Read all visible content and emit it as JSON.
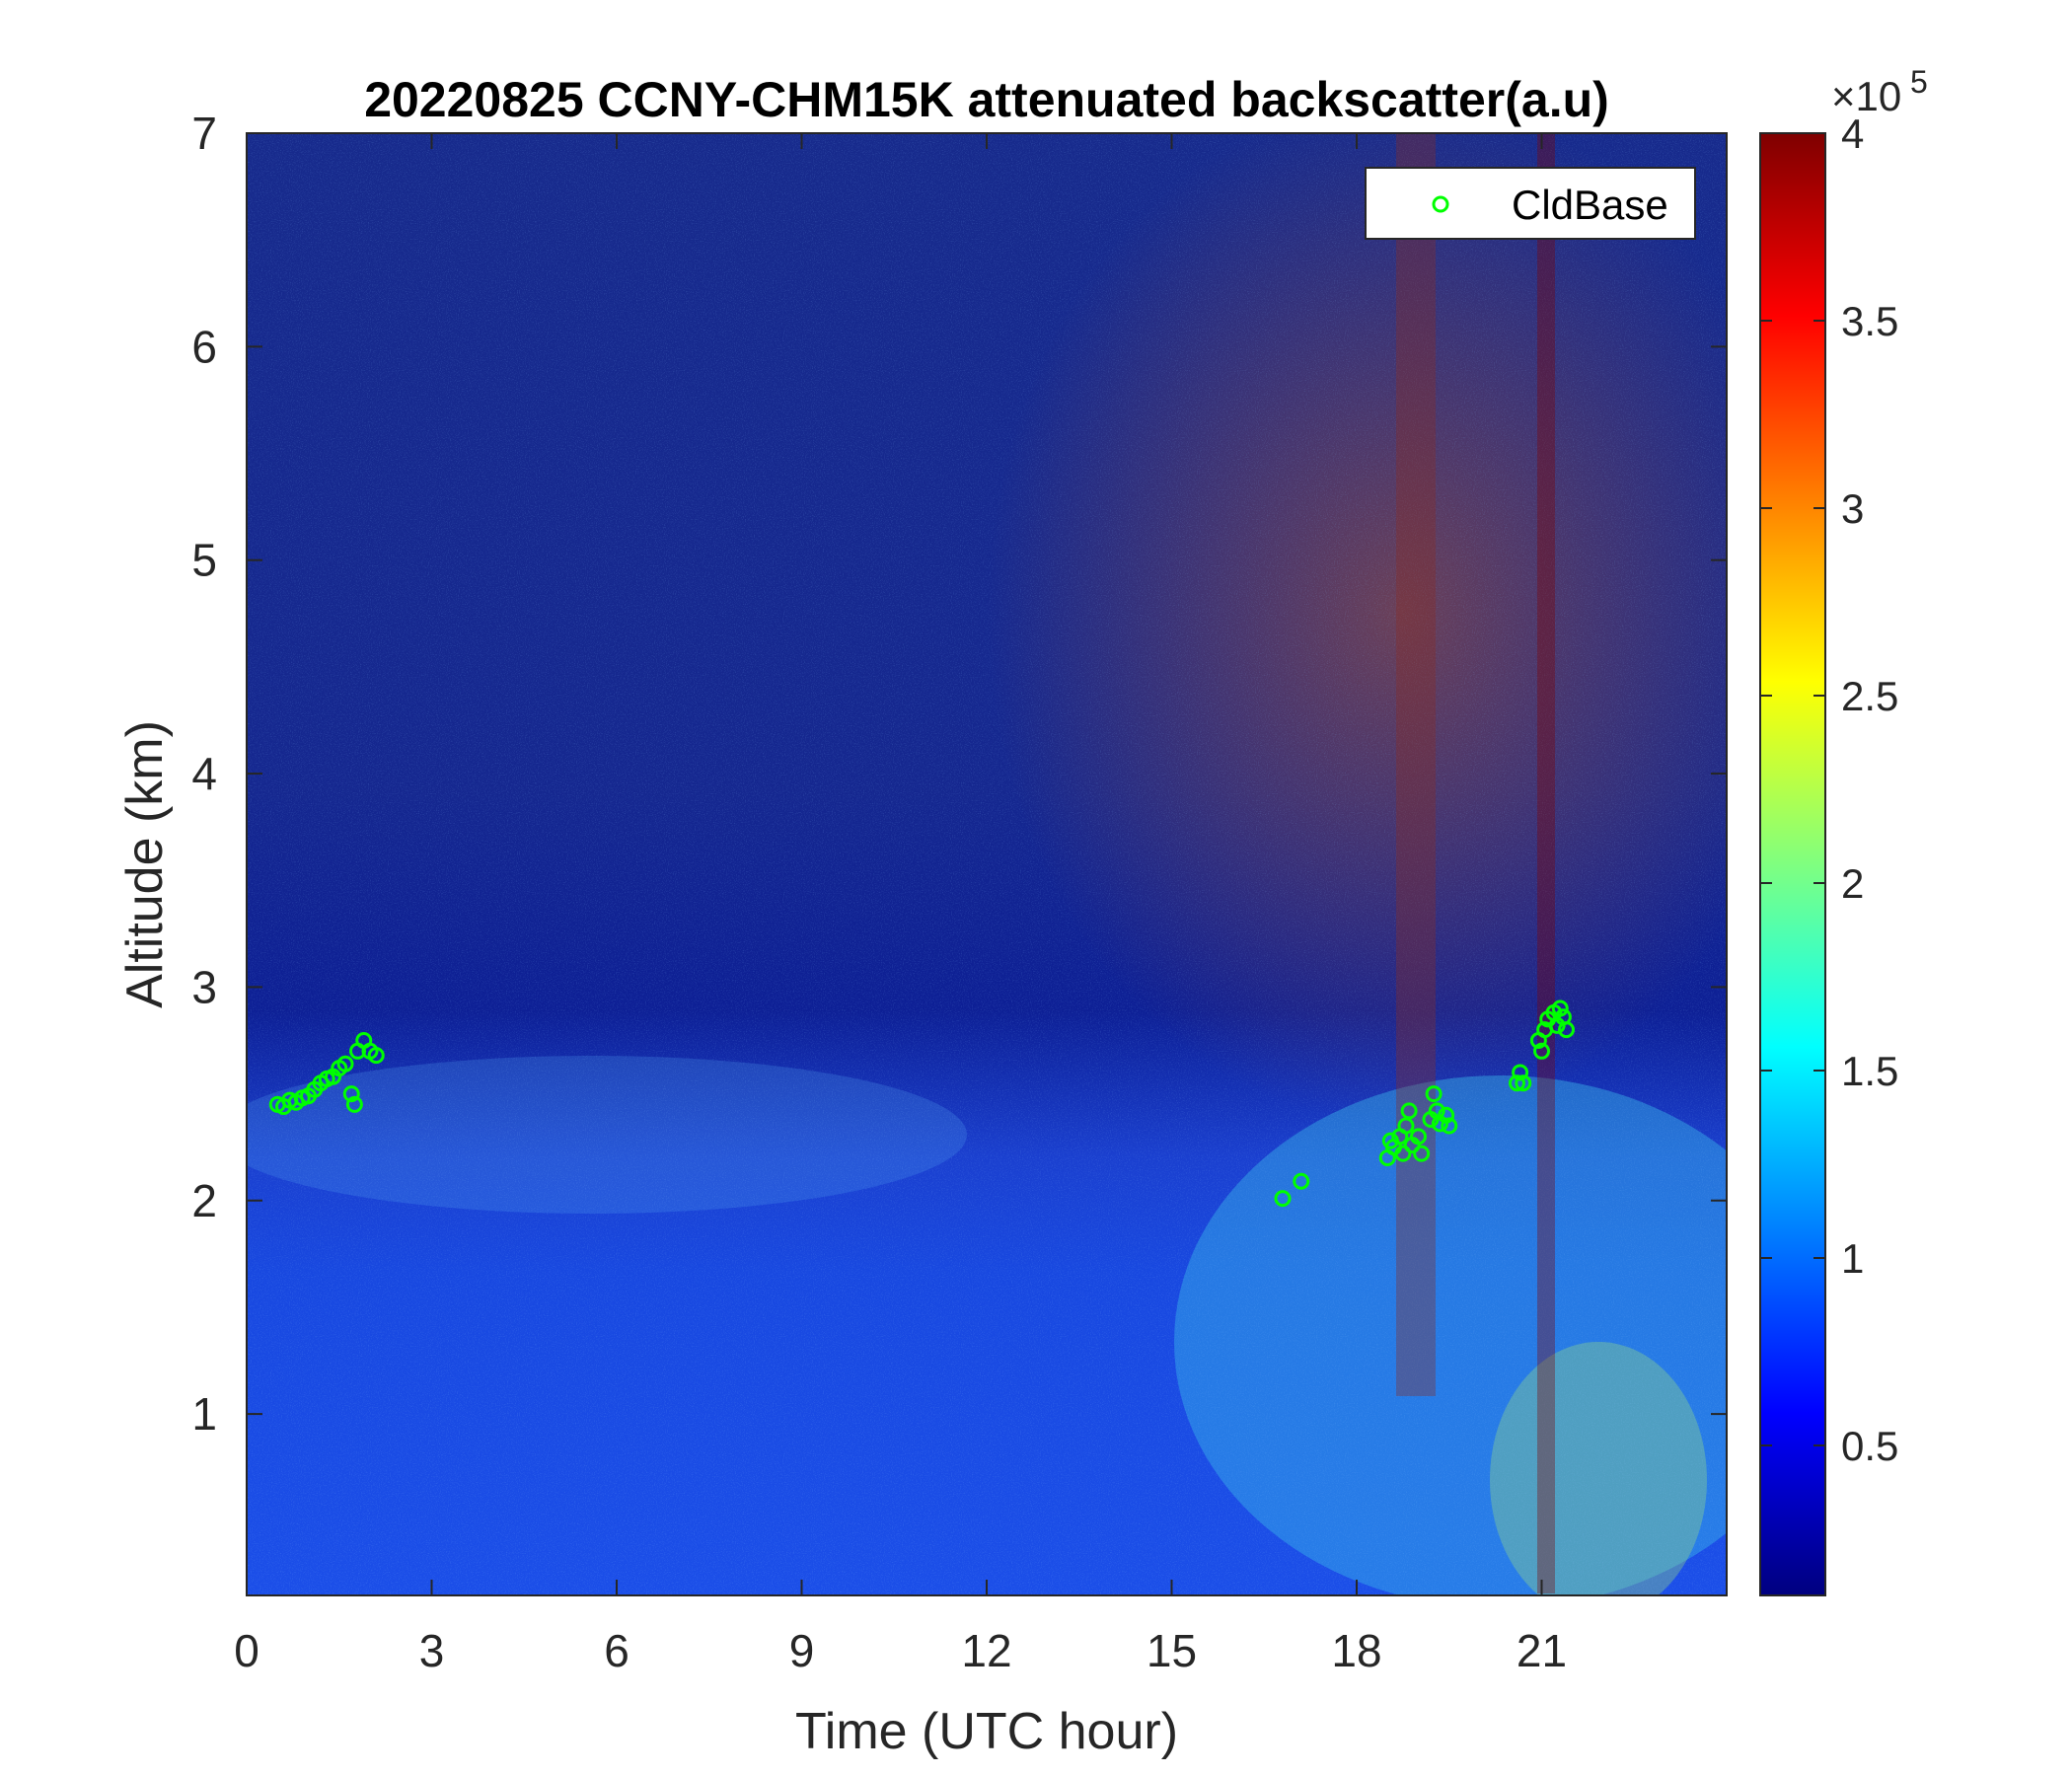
{
  "chart_data": {
    "type": "heatmap",
    "title": "20220825 CCNY-CHM15K attenuated backscatter(a.u)",
    "xlabel": "Time (UTC hour)",
    "ylabel": "Altitude (km)",
    "xlim": [
      0,
      24
    ],
    "ylim": [
      0.15,
      7
    ],
    "xticks": [
      0,
      3,
      6,
      9,
      12,
      15,
      18,
      21
    ],
    "yticks": [
      1,
      2,
      3,
      4,
      5,
      6,
      7
    ],
    "colorbar": {
      "colormap": "jet",
      "clim": [
        0.1,
        4
      ],
      "ticks": [
        0.5,
        1,
        1.5,
        2,
        2.5,
        3,
        3.5,
        4
      ],
      "tick_labels": [
        "0.5",
        "1",
        "1.5",
        "2",
        "2.5",
        "3",
        "3.5",
        "4"
      ],
      "multiplier_prefix": "×10",
      "multiplier_exponent": "5"
    },
    "legend": {
      "location": "top-right",
      "entries": [
        {
          "name": "CldBase",
          "marker": "circle",
          "color": "#00ff00"
        }
      ]
    },
    "series": [
      {
        "name": "CldBase",
        "type": "scatter",
        "color": "#00ff00",
        "points": [
          [
            0.5,
            2.45
          ],
          [
            0.6,
            2.44
          ],
          [
            0.7,
            2.47
          ],
          [
            0.8,
            2.46
          ],
          [
            0.9,
            2.48
          ],
          [
            1.0,
            2.49
          ],
          [
            1.1,
            2.52
          ],
          [
            1.2,
            2.55
          ],
          [
            1.3,
            2.57
          ],
          [
            1.4,
            2.58
          ],
          [
            1.5,
            2.62
          ],
          [
            1.6,
            2.64
          ],
          [
            1.7,
            2.5
          ],
          [
            1.75,
            2.45
          ],
          [
            1.8,
            2.7
          ],
          [
            1.9,
            2.75
          ],
          [
            2.0,
            2.7
          ],
          [
            2.1,
            2.68
          ],
          [
            16.8,
            2.01
          ],
          [
            17.1,
            2.09
          ],
          [
            18.5,
            2.2
          ],
          [
            18.55,
            2.28
          ],
          [
            18.6,
            2.25
          ],
          [
            18.7,
            2.3
          ],
          [
            18.75,
            2.22
          ],
          [
            18.8,
            2.35
          ],
          [
            18.85,
            2.42
          ],
          [
            18.9,
            2.26
          ],
          [
            19.0,
            2.3
          ],
          [
            19.05,
            2.22
          ],
          [
            19.2,
            2.38
          ],
          [
            19.25,
            2.5
          ],
          [
            19.3,
            2.42
          ],
          [
            19.35,
            2.36
          ],
          [
            19.45,
            2.4
          ],
          [
            19.5,
            2.35
          ],
          [
            20.6,
            2.55
          ],
          [
            20.65,
            2.6
          ],
          [
            20.7,
            2.55
          ],
          [
            20.95,
            2.75
          ],
          [
            21.0,
            2.7
          ],
          [
            21.05,
            2.8
          ],
          [
            21.1,
            2.85
          ],
          [
            21.2,
            2.88
          ],
          [
            21.25,
            2.82
          ],
          [
            21.3,
            2.9
          ],
          [
            21.35,
            2.86
          ],
          [
            21.4,
            2.8
          ]
        ]
      }
    ]
  }
}
